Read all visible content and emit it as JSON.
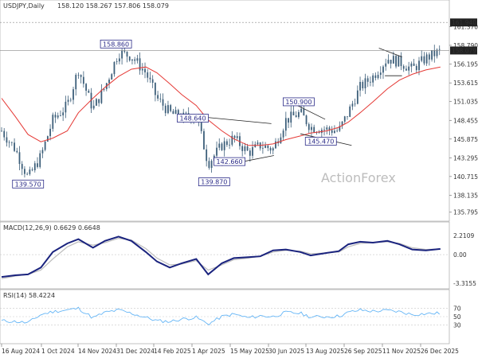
{
  "chart_data": [
    {
      "type": "candlestick",
      "header": {
        "symbol_tf": "USDJPY,Daily",
        "ohlc": "158.120 158.267 157.806 158.079"
      },
      "y_ticks": [
        "161.370",
        "158.790",
        "156.195",
        "153.615",
        "151.035",
        "148.455",
        "145.875",
        "143.295",
        "140.715",
        "138.135",
        "135.795"
      ],
      "ylim": [
        135.0,
        163.5
      ],
      "price_tags": [
        {
          "text": "161.940",
          "value": 161.94,
          "color": "#222222"
        },
        {
          "text": "158.079",
          "value": 158.079,
          "color": "#222222"
        }
      ],
      "watermark": "ActionForex",
      "annotations": [
        {
          "text": "158.860",
          "x": "2024-12-28",
          "y": 158.86
        },
        {
          "text": "139.570",
          "x": "2024-09-16",
          "y": 139.57
        },
        {
          "text": "139.870",
          "x": "2025-04-22",
          "y": 139.87
        },
        {
          "text": "148.640",
          "x": "2025-03-28",
          "y": 148.64
        },
        {
          "text": "142.660",
          "x": "2025-05-10",
          "y": 142.66
        },
        {
          "text": "150.900",
          "x": "2025-07-30",
          "y": 150.9
        },
        {
          "text": "145.470",
          "x": "2025-08-25",
          "y": 145.47
        }
      ],
      "dates": [
        "2024-08-16",
        "2024-09-01",
        "2024-09-16",
        "2024-10-01",
        "2024-10-15",
        "2024-11-01",
        "2024-11-14",
        "2024-12-01",
        "2024-12-15",
        "2024-12-31",
        "2025-01-15",
        "2025-02-01",
        "2025-02-14",
        "2025-03-01",
        "2025-03-15",
        "2025-04-01",
        "2025-04-15",
        "2025-05-01",
        "2025-05-15",
        "2025-06-01",
        "2025-06-15",
        "2025-06-30",
        "2025-07-15",
        "2025-08-01",
        "2025-08-13",
        "2025-09-01",
        "2025-09-15",
        "2025-09-26",
        "2025-10-10",
        "2025-10-25",
        "2025-11-11",
        "2025-11-25",
        "2025-12-10",
        "2025-12-26",
        "2026-01-12"
      ],
      "closes": [
        147.0,
        144.5,
        140.5,
        143.5,
        148.5,
        150.5,
        155.5,
        150.0,
        153.0,
        157.8,
        157.3,
        155.0,
        151.5,
        149.5,
        148.8,
        149.2,
        142.5,
        145.0,
        146.0,
        144.0,
        145.0,
        144.5,
        148.5,
        149.5,
        147.5,
        147.2,
        147.0,
        149.5,
        153.0,
        154.5,
        157.0,
        156.5,
        155.5,
        157.0,
        158.0
      ],
      "ma": [
        151.5,
        149.0,
        146.5,
        145.5,
        146.0,
        147.0,
        149.5,
        151.5,
        153.0,
        154.5,
        155.5,
        155.8,
        155.0,
        153.5,
        152.0,
        150.5,
        148.5,
        147.0,
        145.9,
        145.0,
        145.0,
        145.2,
        145.8,
        146.3,
        146.7,
        147.0,
        147.5,
        148.2,
        149.5,
        151.0,
        152.8,
        154.0,
        154.8,
        155.4,
        155.8
      ]
    },
    {
      "type": "line",
      "title": "MACD(12,26,9) 0.6629 0.6648",
      "y_ticks": [
        "2.2109",
        "0.00",
        "-3.3155"
      ],
      "ylim": [
        -3.7,
        2.6
      ],
      "macd": [
        -2.6,
        -2.4,
        -2.3,
        -1.5,
        0.3,
        1.3,
        1.8,
        0.8,
        1.6,
        2.1,
        1.6,
        0.3,
        -0.8,
        -1.5,
        -1.0,
        -0.5,
        -2.3,
        -1.0,
        -0.4,
        -0.3,
        -0.2,
        0.5,
        0.6,
        0.3,
        -0.1,
        0.2,
        0.4,
        1.2,
        1.5,
        1.4,
        1.6,
        1.2,
        0.6,
        0.5,
        0.66
      ],
      "signal": [
        -2.8,
        -2.5,
        -2.3,
        -1.8,
        -0.5,
        0.9,
        1.5,
        1.1,
        1.4,
        1.9,
        1.7,
        0.7,
        -0.4,
        -1.2,
        -1.1,
        -0.7,
        -1.8,
        -1.2,
        -0.6,
        -0.4,
        -0.2,
        0.3,
        0.5,
        0.4,
        0.1,
        0.2,
        0.3,
        0.9,
        1.3,
        1.4,
        1.5,
        1.3,
        0.8,
        0.6,
        0.66
      ]
    },
    {
      "type": "line",
      "title": "RSI(14) 58.4224",
      "y_ticks": [
        "70",
        "50",
        "30"
      ],
      "ylim": [
        0,
        100
      ],
      "levels": [
        70,
        50,
        30
      ],
      "rsi": [
        40,
        38,
        35,
        55,
        62,
        66,
        70,
        47,
        60,
        66,
        58,
        48,
        40,
        38,
        44,
        48,
        32,
        50,
        56,
        47,
        52,
        50,
        60,
        58,
        49,
        50,
        51,
        60,
        66,
        63,
        65,
        62,
        55,
        57,
        58.4
      ]
    }
  ],
  "x_axis": {
    "labels": [
      "16 Aug 2024",
      "1 Oct 2024",
      "14 Nov 2024",
      "31 Dec 2024",
      "14 Feb 2025",
      "1 Apr 2025",
      "15 May 2025",
      "30 Jun 2025",
      "13 Aug 2025",
      "26 Sep 2025",
      "11 Nov 2025",
      "26 Dec 2025"
    ]
  },
  "colors": {
    "candle": "#3d5f7a",
    "ma": "#e53935",
    "macd": "#1a237e",
    "signal": "#bdbdbd",
    "rsi": "#64b5f6",
    "grid": "#c8c8c8",
    "box_border": "#2b2b88"
  }
}
